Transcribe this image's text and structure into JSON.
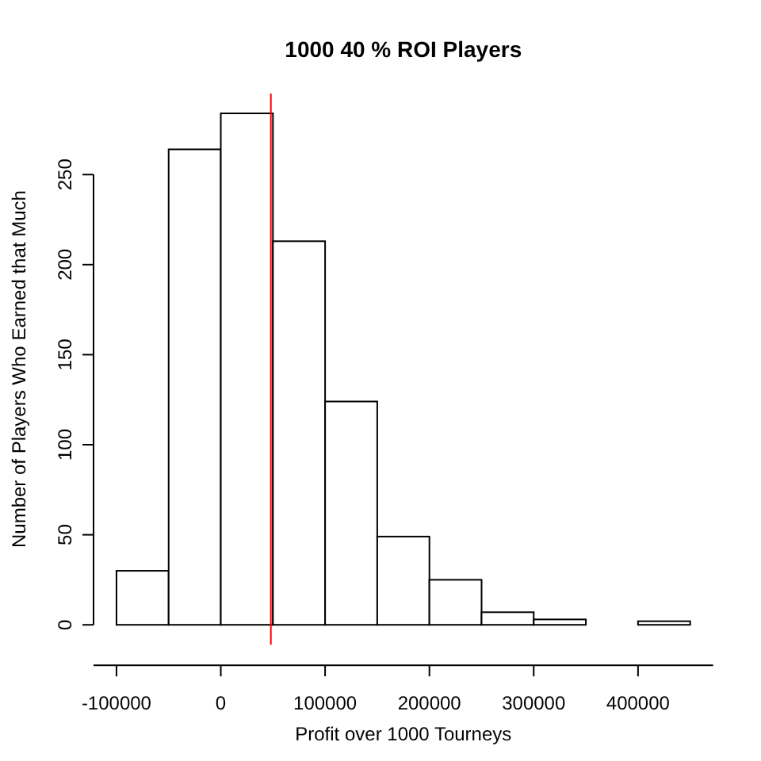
{
  "chart_data": {
    "type": "histogram",
    "title": "1000 40 % ROI Players",
    "xlabel": "Profit over 1000 Tourneys",
    "ylabel": "Number of Players Who Earned that Much",
    "bins": [
      -100000,
      -50000,
      0,
      50000,
      100000,
      150000,
      200000,
      250000,
      300000,
      350000,
      400000,
      450000
    ],
    "values": [
      30,
      264,
      284,
      213,
      124,
      49,
      25,
      7,
      3,
      0,
      2
    ],
    "color": "#ffffff",
    "xlim": [
      -122000,
      472000
    ],
    "xticks": [
      -100000,
      0,
      100000,
      200000,
      300000,
      400000
    ],
    "ylim": [
      -11,
      295
    ],
    "yticks": [
      0,
      50,
      100,
      150,
      200,
      250
    ],
    "ref_lines": [
      {
        "axis": "x",
        "value": 48000,
        "color": "#ff0000"
      }
    ]
  }
}
